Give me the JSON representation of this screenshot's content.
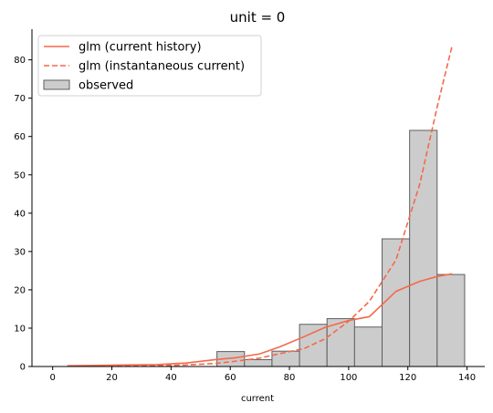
{
  "chart_data": {
    "type": "bar",
    "title": "unit = 0",
    "xlabel": "current",
    "ylabel": "",
    "xlim": [
      -7,
      146
    ],
    "ylim": [
      0,
      88
    ],
    "xticks": [
      0,
      20,
      40,
      60,
      80,
      100,
      120,
      140
    ],
    "yticks": [
      0,
      10,
      20,
      30,
      40,
      50,
      60,
      70,
      80
    ],
    "legend_position": "upper-left",
    "colors": {
      "curve": "#f4694a",
      "bar_fill": "#cccccc",
      "bar_edge": "#5f5f5f"
    },
    "observed": {
      "name": "observed",
      "bin_edges": [
        55.5,
        64.8,
        74.1,
        83.4,
        92.7,
        102.0,
        111.3,
        120.6,
        129.9,
        139.2
      ],
      "values": [
        3.9,
        1.8,
        4.0,
        11.0,
        12.5,
        10.3,
        33.3,
        61.6,
        24.0
      ]
    },
    "series": [
      {
        "name": "glm (current history)",
        "style": "solid",
        "x": [
          5,
          15,
          25,
          35,
          45,
          55,
          62,
          70,
          77,
          85,
          92,
          100,
          107,
          116,
          124,
          130,
          135
        ],
        "y": [
          0.2,
          0.3,
          0.4,
          0.5,
          0.9,
          1.8,
          2.3,
          3.3,
          5.2,
          7.8,
          10.2,
          12.0,
          13.0,
          19.6,
          22.2,
          23.5,
          24.2
        ]
      },
      {
        "name": "glm (instantaneous current)",
        "style": "dashed",
        "x": [
          5,
          15,
          25,
          35,
          45,
          55,
          62,
          70,
          77,
          85,
          92,
          100,
          107,
          116,
          124,
          130,
          135
        ],
        "y": [
          0.1,
          0.1,
          0.1,
          0.2,
          0.4,
          0.8,
          1.4,
          2.2,
          3.4,
          4.7,
          7.2,
          11.8,
          17.0,
          27.8,
          47.5,
          68.0,
          83.8
        ]
      }
    ]
  }
}
